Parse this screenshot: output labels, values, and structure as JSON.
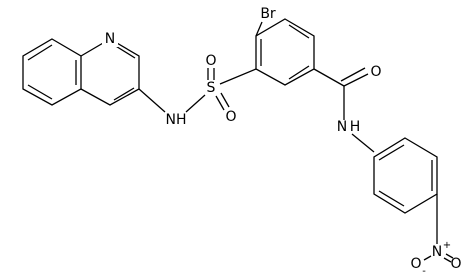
{
  "atoms": {
    "bromine": "Br",
    "sulfur": "S",
    "sulfonyl_oxygen_top": "O",
    "sulfonyl_oxygen_bottom": "O",
    "sulfonamide_nh": "NH",
    "quinoline_n": "N",
    "carbonyl_oxygen": "O",
    "amide_n": "N",
    "amide_h": "H",
    "nitro_n": "N",
    "nitro_n_charge": "+",
    "nitro_oxygen_left": "O",
    "nitro_oxygen_left_charge": "-",
    "nitro_oxygen_right": "O"
  }
}
